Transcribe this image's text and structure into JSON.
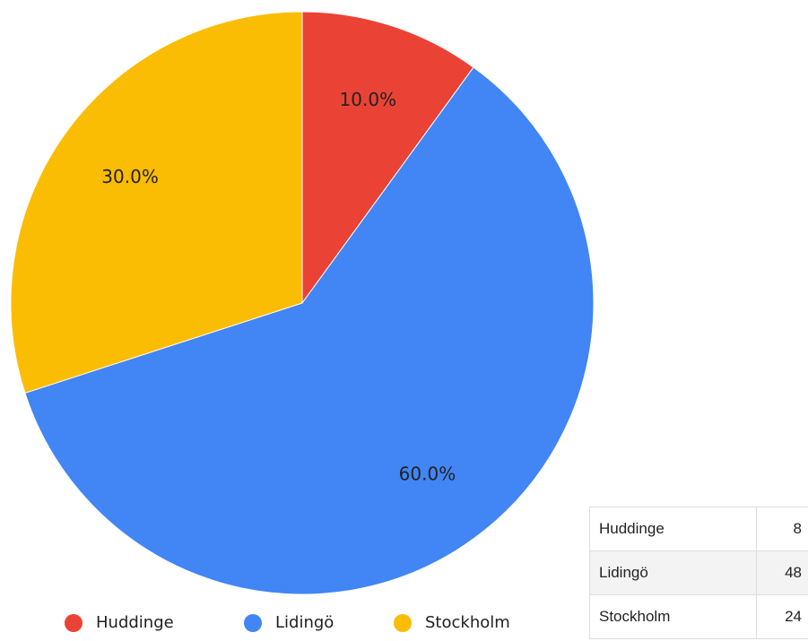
{
  "chart_data": {
    "type": "pie",
    "categories": [
      "Huddinge",
      "Lidingö",
      "Stockholm"
    ],
    "values": [
      10,
      60,
      30
    ],
    "value_labels": [
      "10.0%",
      "60.0%",
      "30.0%"
    ],
    "colors": [
      "#ea4335",
      "#4285f4",
      "#fbbc04"
    ],
    "legend": "bottom"
  },
  "table": {
    "rows": [
      [
        "Huddinge",
        8
      ],
      [
        "Lidingö",
        48
      ],
      [
        "Stockholm",
        24
      ]
    ]
  }
}
